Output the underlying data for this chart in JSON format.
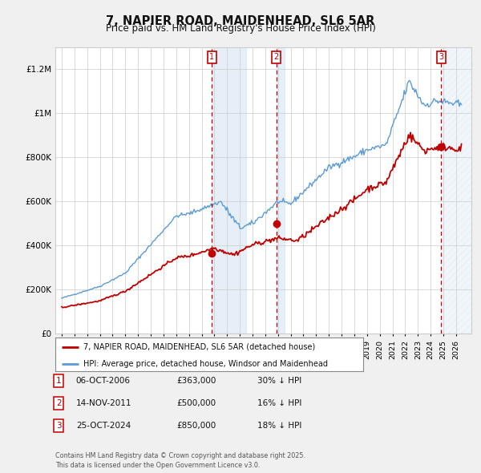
{
  "title": "7, NAPIER ROAD, MAIDENHEAD, SL6 5AR",
  "subtitle": "Price paid vs. HM Land Registry's House Price Index (HPI)",
  "hpi_label": "HPI: Average price, detached house, Windsor and Maidenhead",
  "price_label": "7, NAPIER ROAD, MAIDENHEAD, SL6 5AR (detached house)",
  "hpi_color": "#5b9bd5",
  "price_color": "#c00000",
  "transactions": [
    {
      "num": 1,
      "date": "06-OCT-2006",
      "price": 363000,
      "pct": "30% ↓ HPI",
      "year": 2006.79
    },
    {
      "num": 2,
      "date": "14-NOV-2011",
      "price": 500000,
      "pct": "16% ↓ HPI",
      "year": 2011.87
    },
    {
      "num": 3,
      "date": "25-OCT-2024",
      "price": 850000,
      "pct": "18% ↓ HPI",
      "year": 2024.81
    }
  ],
  "footer": "Contains HM Land Registry data © Crown copyright and database right 2025.\nThis data is licensed under the Open Government Licence v3.0.",
  "ylim": [
    0,
    1300000
  ],
  "yticks": [
    0,
    200000,
    400000,
    600000,
    800000,
    1000000,
    1200000
  ],
  "ytick_labels": [
    "£0",
    "£200K",
    "£400K",
    "£600K",
    "£800K",
    "£1M",
    "£1.2M"
  ],
  "background_color": "#f0f0f0",
  "plot_bg": "#ffffff",
  "grid_color": "#cccccc",
  "vline_color": "#c00000",
  "shade_color": "#dce9f5",
  "xlim_start": 1994.5,
  "xlim_end": 2027.2
}
